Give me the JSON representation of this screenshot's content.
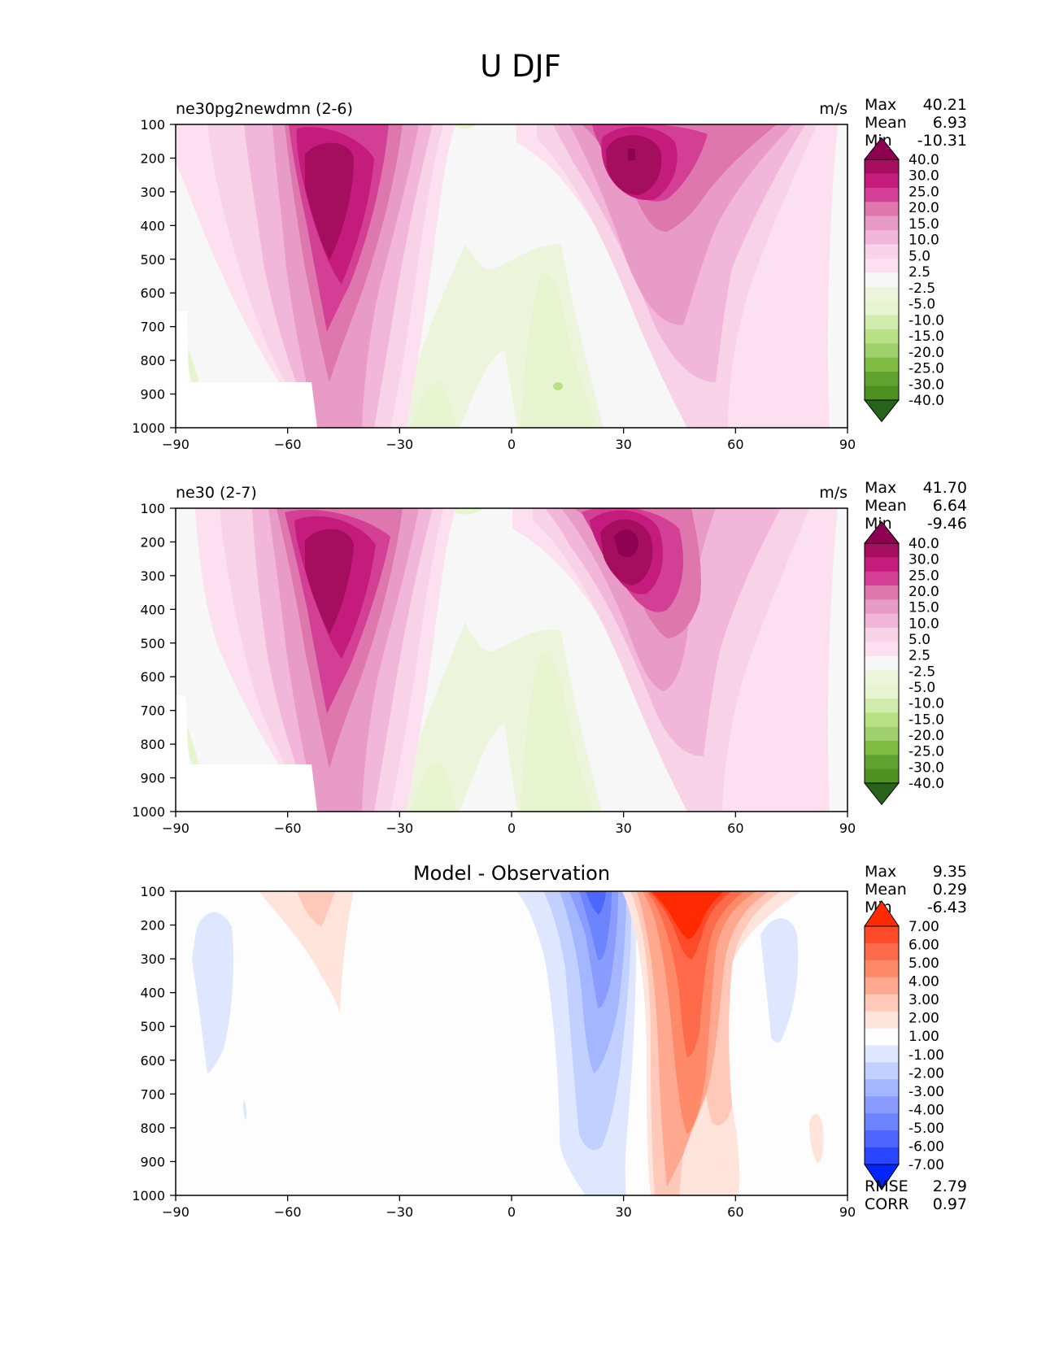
{
  "figure": {
    "title": "U DJF",
    "x_ticks": [
      "−90",
      "−60",
      "−30",
      "0",
      "30",
      "60",
      "90"
    ],
    "y_ticks": [
      "100",
      "200",
      "300",
      "400",
      "500",
      "600",
      "700",
      "800",
      "900",
      "1000"
    ]
  },
  "panels": [
    {
      "id": "test",
      "label": "ne30pg2newdmn (2-6)",
      "units": "m/s",
      "stats": [
        {
          "label": "Max",
          "value": "40.21"
        },
        {
          "label": "Mean",
          "value": "6.93"
        },
        {
          "label": "Min",
          "value": "-10.31"
        }
      ],
      "colorbar": {
        "labels": [
          "40.0",
          "30.0",
          "25.0",
          "20.0",
          "15.0",
          "10.0",
          "5.0",
          "2.5",
          "-2.5",
          "-5.0",
          "-10.0",
          "-15.0",
          "-20.0",
          "-25.0",
          "-30.0",
          "-40.0"
        ],
        "colors": [
          "#8e0152",
          "#a50d5e",
          "#c51b7d",
          "#d33f94",
          "#de77ae",
          "#e99bc7",
          "#f1b6da",
          "#f8d3e8",
          "#fde0ef",
          "#f7f7f7",
          "#ecf5dc",
          "#e6f5d0",
          "#cfecad",
          "#b8e186",
          "#9fd06c",
          "#7fbc41",
          "#60a22f",
          "#4d9221",
          "#276419"
        ]
      }
    },
    {
      "id": "reference",
      "label": "ne30 (2-7)",
      "units": "m/s",
      "stats": [
        {
          "label": "Max",
          "value": "41.70"
        },
        {
          "label": "Mean",
          "value": "6.64"
        },
        {
          "label": "Min",
          "value": "-9.46"
        }
      ],
      "colorbar": {
        "labels": [
          "40.0",
          "30.0",
          "25.0",
          "20.0",
          "15.0",
          "10.0",
          "5.0",
          "2.5",
          "-2.5",
          "-5.0",
          "-10.0",
          "-15.0",
          "-20.0",
          "-25.0",
          "-30.0",
          "-40.0"
        ],
        "colors": [
          "#8e0152",
          "#a50d5e",
          "#c51b7d",
          "#d33f94",
          "#de77ae",
          "#e99bc7",
          "#f1b6da",
          "#f8d3e8",
          "#fde0ef",
          "#f7f7f7",
          "#ecf5dc",
          "#e6f5d0",
          "#cfecad",
          "#b8e186",
          "#9fd06c",
          "#7fbc41",
          "#60a22f",
          "#4d9221",
          "#276419"
        ]
      }
    },
    {
      "id": "difference",
      "title": "Model - Observation",
      "stats": [
        {
          "label": "Max",
          "value": "9.35"
        },
        {
          "label": "Mean",
          "value": "0.29"
        },
        {
          "label": "Min",
          "value": "-6.43"
        }
      ],
      "metrics": [
        {
          "label": "RMSE",
          "value": "2.79"
        },
        {
          "label": "CORR",
          "value": "0.97"
        }
      ],
      "colorbar": {
        "labels": [
          "7.00",
          "6.00",
          "5.00",
          "4.00",
          "3.00",
          "2.00",
          "1.00",
          "-1.00",
          "-2.00",
          "-3.00",
          "-4.00",
          "-5.00",
          "-6.00",
          "-7.00"
        ],
        "colors": [
          "#ff2a00",
          "#ff4a2a",
          "#ff6a4a",
          "#ff8a6a",
          "#ffa890",
          "#ffc8b8",
          "#ffe4dc",
          "#fdfdfd",
          "#dfe6ff",
          "#c2d0ff",
          "#a3b6ff",
          "#8a9cff",
          "#6d84ff",
          "#4c66ff",
          "#2a45ff",
          "#0026ff"
        ]
      }
    }
  ],
  "chart_data": [
    {
      "type": "heatmap",
      "title": "ne30pg2newdmn (2-6)",
      "units": "m/s",
      "xlabel": "",
      "ylabel": "",
      "xlim": [
        -90,
        90
      ],
      "ylim": [
        1000,
        100
      ],
      "x_ticks": [
        -90,
        -60,
        -30,
        0,
        30,
        60,
        90
      ],
      "y_ticks": [
        100,
        200,
        300,
        400,
        500,
        600,
        700,
        800,
        900,
        1000
      ],
      "levels": [
        -40,
        -30,
        -25,
        -20,
        -15,
        -10,
        -5,
        -2.5,
        2.5,
        5,
        10,
        15,
        20,
        25,
        30,
        40
      ],
      "features": [
        {
          "name": "SH jet",
          "lat": -50,
          "plev": 260,
          "peak": 34
        },
        {
          "name": "NH jet",
          "lat": 33,
          "plev": 200,
          "peak": 40
        },
        {
          "name": "tropical easterlies",
          "lat": 10,
          "plev": 820,
          "peak": -10
        }
      ],
      "max": 40.21,
      "mean": 6.93,
      "min": -10.31
    },
    {
      "type": "heatmap",
      "title": "ne30 (2-7)",
      "units": "m/s",
      "xlabel": "",
      "ylabel": "",
      "xlim": [
        -90,
        90
      ],
      "ylim": [
        1000,
        100
      ],
      "x_ticks": [
        -90,
        -60,
        -30,
        0,
        30,
        60,
        90
      ],
      "y_ticks": [
        100,
        200,
        300,
        400,
        500,
        600,
        700,
        800,
        900,
        1000
      ],
      "levels": [
        -40,
        -30,
        -25,
        -20,
        -15,
        -10,
        -5,
        -2.5,
        2.5,
        5,
        10,
        15,
        20,
        25,
        30,
        40
      ],
      "features": [
        {
          "name": "SH jet",
          "lat": -49,
          "plev": 250,
          "peak": 33
        },
        {
          "name": "NH jet",
          "lat": 30,
          "plev": 210,
          "peak": 41
        },
        {
          "name": "tropical easterlies",
          "lat": 9,
          "plev": 800,
          "peak": -9
        }
      ],
      "max": 41.7,
      "mean": 6.64,
      "min": -9.46
    },
    {
      "type": "heatmap",
      "title": "Model - Observation",
      "xlabel": "",
      "ylabel": "",
      "xlim": [
        -90,
        90
      ],
      "ylim": [
        1000,
        100
      ],
      "x_ticks": [
        -90,
        -60,
        -30,
        0,
        30,
        60,
        90
      ],
      "y_ticks": [
        100,
        200,
        300,
        400,
        500,
        600,
        700,
        800,
        900,
        1000
      ],
      "levels": [
        -7,
        -6,
        -5,
        -4,
        -3,
        -2,
        -1,
        1,
        2,
        3,
        4,
        5,
        6,
        7
      ],
      "features": [
        {
          "name": "NH positive bias",
          "lat": 45,
          "plev": 150,
          "peak": 9
        },
        {
          "name": "NH negative bias",
          "lat": 22,
          "plev": 150,
          "peak": -6
        },
        {
          "name": "SH positive bias",
          "lat": -52,
          "plev": 180,
          "peak": 2
        },
        {
          "name": "SH negative bias",
          "lat": -83,
          "plev": 300,
          "peak": -1.5
        }
      ],
      "max": 9.35,
      "mean": 0.29,
      "min": -6.43,
      "rmse": 2.79,
      "corr": 0.97
    }
  ]
}
